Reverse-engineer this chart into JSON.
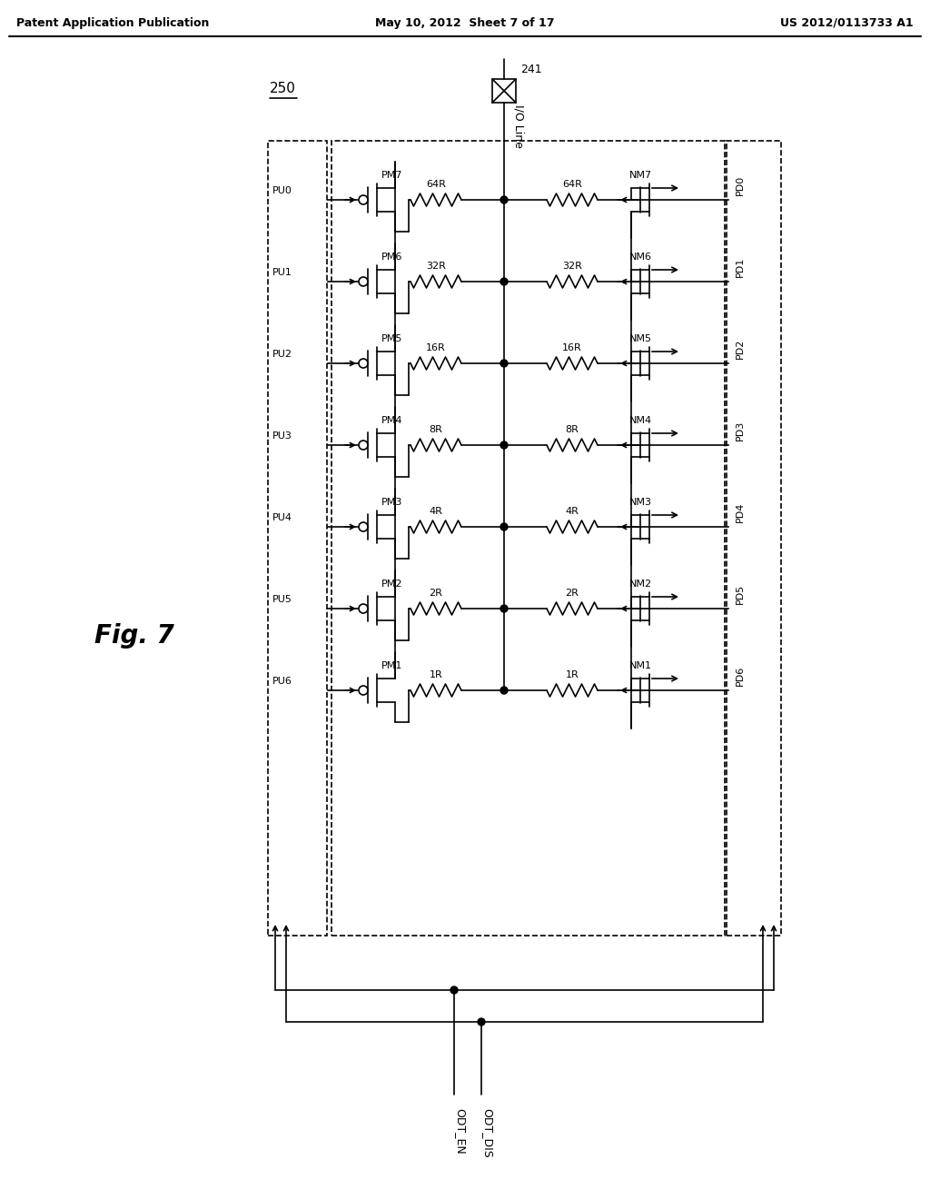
{
  "title": "Fig. 7",
  "header_left": "Patent Application Publication",
  "header_mid": "May 10, 2012  Sheet 7 of 17",
  "header_right": "US 2012/0113733 A1",
  "label_250": "250",
  "label_241": "241",
  "io_line_label": "I/O Line",
  "bg_color": "#ffffff",
  "line_color": "#000000",
  "resistor_rows": [
    {
      "res_left": "64R",
      "res_right": "64R",
      "pmos": "PM7",
      "nmos": "NM7",
      "pu": "PU0",
      "pd": "PD0"
    },
    {
      "res_left": "32R",
      "res_right": "32R",
      "pmos": "PM6",
      "nmos": "NM6",
      "pu": "PU1",
      "pd": "PD1"
    },
    {
      "res_left": "16R",
      "res_right": "16R",
      "pmos": "PM5",
      "nmos": "NM5",
      "pu": "PU2",
      "pd": "PD2"
    },
    {
      "res_left": "8R",
      "res_right": "8R",
      "pmos": "PM4",
      "nmos": "NM4",
      "pu": "PU3",
      "pd": "PD3"
    },
    {
      "res_left": "4R",
      "res_right": "4R",
      "pmos": "PM3",
      "nmos": "NM3",
      "pu": "PU4",
      "pd": "PD4"
    },
    {
      "res_left": "2R",
      "res_right": "2R",
      "pmos": "PM2",
      "nmos": "NM2",
      "pu": "PU5",
      "pd": "PD5"
    },
    {
      "res_left": "1R",
      "res_right": "1R",
      "pmos": "PM1",
      "nmos": "NM1",
      "pu": "PU6",
      "pd": "PD6"
    }
  ],
  "odt_en": "ODT_EN",
  "odt_dis": "ODT_DIS"
}
